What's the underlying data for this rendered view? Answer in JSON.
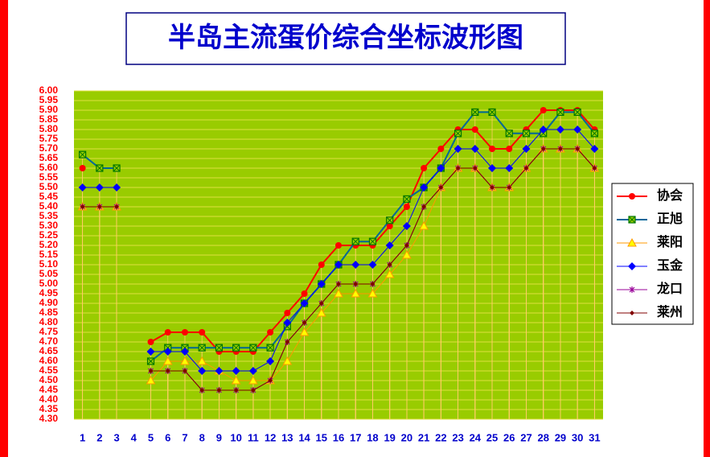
{
  "chart_data": {
    "type": "line",
    "title": "半岛主流蛋价综合坐标波形图",
    "categories": [
      "1",
      "2",
      "3",
      "4",
      "5",
      "6",
      "7",
      "8",
      "9",
      "10",
      "11",
      "12",
      "13",
      "14",
      "15",
      "16",
      "17",
      "18",
      "19",
      "20",
      "21",
      "22",
      "23",
      "24",
      "25",
      "26",
      "27",
      "28",
      "29",
      "30",
      "31"
    ],
    "ylim": [
      4.3,
      6.0
    ],
    "yticks": [
      {
        "value": 4.3,
        "label": "4.30"
      },
      {
        "value": 4.35,
        "label": "4.35"
      },
      {
        "value": 4.4,
        "label": "4.40"
      },
      {
        "value": 4.45,
        "label": "4.45"
      },
      {
        "value": 4.5,
        "label": "4.50"
      },
      {
        "value": 4.55,
        "label": "4.55"
      },
      {
        "value": 4.6,
        "label": "4.60"
      },
      {
        "value": 4.65,
        "label": "4.65"
      },
      {
        "value": 4.7,
        "label": "4.70"
      },
      {
        "value": 4.75,
        "label": "4.75"
      },
      {
        "value": 4.8,
        "label": "4.80"
      },
      {
        "value": 4.85,
        "label": "4.85"
      },
      {
        "value": 4.9,
        "label": "4.90"
      },
      {
        "value": 4.95,
        "label": "4.95"
      },
      {
        "value": 5,
        "label": "5.00"
      },
      {
        "value": 5.05,
        "label": "5.05"
      },
      {
        "value": 5.1,
        "label": "5.10"
      },
      {
        "value": 5.15,
        "label": "5.15"
      },
      {
        "value": 5.2,
        "label": "5.20"
      },
      {
        "value": 5.25,
        "label": "5.25"
      },
      {
        "value": 5.3,
        "label": "5.30"
      },
      {
        "value": 5.35,
        "label": "5.35"
      },
      {
        "value": 5.4,
        "label": "5.40"
      },
      {
        "value": 5.45,
        "label": "5.45"
      },
      {
        "value": 5.5,
        "label": "5.50"
      },
      {
        "value": 5.55,
        "label": "5.55"
      },
      {
        "value": 5.6,
        "label": "5.60"
      },
      {
        "value": 5.65,
        "label": "5.65"
      },
      {
        "value": 5.7,
        "label": "5.70"
      },
      {
        "value": 5.75,
        "label": "5.75"
      },
      {
        "value": 5.8,
        "label": "5.80"
      },
      {
        "value": 5.85,
        "label": "5.85"
      },
      {
        "value": 5.9,
        "label": "5.90"
      },
      {
        "value": 5.95,
        "label": "5.95"
      },
      {
        "value": 6,
        "label": "6.00"
      }
    ],
    "grid": true,
    "legend": "right",
    "series": [
      {
        "name": "协会",
        "color": "#ff0000",
        "marker": "circle",
        "values": [
          5.6,
          null,
          null,
          null,
          4.7,
          4.75,
          4.75,
          4.75,
          4.65,
          4.65,
          4.65,
          4.75,
          4.85,
          4.95,
          5.1,
          5.2,
          5.2,
          5.2,
          5.3,
          5.4,
          5.6,
          5.7,
          5.8,
          5.8,
          5.7,
          5.7,
          5.8,
          5.9,
          5.9,
          5.9,
          5.8
        ]
      },
      {
        "name": "正旭",
        "color": "#006699",
        "marker": "xsquare",
        "values": [
          5.67,
          5.6,
          5.6,
          null,
          4.6,
          4.67,
          4.67,
          4.67,
          4.67,
          4.67,
          4.67,
          4.67,
          4.78,
          4.9,
          5.0,
          5.1,
          5.22,
          5.22,
          5.33,
          5.44,
          5.5,
          5.6,
          5.78,
          5.89,
          5.89,
          5.78,
          5.78,
          5.78,
          5.89,
          5.89,
          5.78
        ]
      },
      {
        "name": "莱阳",
        "color": "#ff9900",
        "marker": "triangle",
        "values": [
          5.4,
          5.4,
          5.4,
          null,
          4.5,
          4.6,
          4.6,
          4.6,
          4.55,
          4.5,
          4.5,
          4.5,
          4.6,
          4.75,
          4.85,
          4.95,
          4.95,
          4.95,
          5.05,
          5.15,
          5.3,
          5.5,
          5.6,
          5.6,
          5.5,
          5.5,
          5.6,
          5.7,
          5.7,
          5.7,
          5.6
        ]
      },
      {
        "name": "玉金",
        "color": "#0000ff",
        "marker": "diamond",
        "values": [
          5.5,
          5.5,
          5.5,
          null,
          4.65,
          4.65,
          4.65,
          4.55,
          4.55,
          4.55,
          4.55,
          4.6,
          4.8,
          4.9,
          5.0,
          5.1,
          5.1,
          5.1,
          5.2,
          5.3,
          5.5,
          5.6,
          5.7,
          5.7,
          5.6,
          5.6,
          5.7,
          5.8,
          5.8,
          5.8,
          5.7
        ]
      },
      {
        "name": "龙口",
        "color": "#990099",
        "marker": "star",
        "values": [
          5.4,
          5.4,
          5.4,
          null,
          4.55,
          4.55,
          4.55,
          4.45,
          4.45,
          4.45,
          4.45,
          4.5,
          4.7,
          4.8,
          4.9,
          5.0,
          5.0,
          5.0,
          5.1,
          5.2,
          5.4,
          5.5,
          5.6,
          5.6,
          5.5,
          5.5,
          5.6,
          5.7,
          5.7,
          5.7,
          5.6
        ]
      },
      {
        "name": "莱州",
        "color": "#800000",
        "marker": "sdiamond",
        "values": [
          5.4,
          5.4,
          5.4,
          null,
          4.55,
          4.55,
          4.55,
          4.45,
          4.45,
          4.45,
          4.45,
          4.5,
          4.7,
          4.8,
          4.9,
          5.0,
          5.0,
          5.0,
          5.1,
          5.2,
          5.4,
          5.5,
          5.6,
          5.6,
          5.5,
          5.5,
          5.6,
          5.7,
          5.7,
          5.7,
          5.6
        ]
      }
    ]
  }
}
